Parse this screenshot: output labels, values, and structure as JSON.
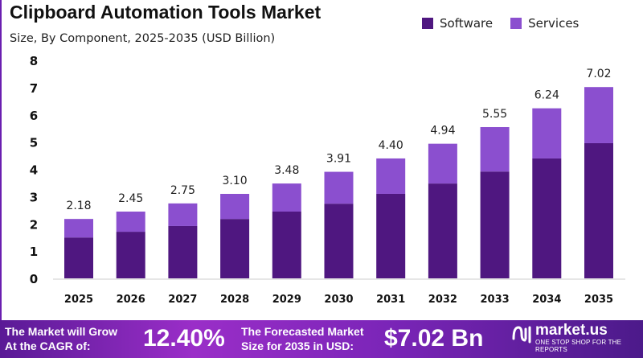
{
  "chart_data": {
    "type": "bar",
    "stacked": true,
    "title": "Clipboard Automation Tools Market",
    "subtitle": "Size, By Component, 2025-2035 (USD Billion)",
    "categories": [
      "2025",
      "2026",
      "2027",
      "2028",
      "2029",
      "2030",
      "2031",
      "2032",
      "2033",
      "2034",
      "2035"
    ],
    "series": [
      {
        "name": "Software",
        "color": "#4f1780",
        "values": [
          1.5,
          1.71,
          1.92,
          2.18,
          2.45,
          2.74,
          3.1,
          3.48,
          3.92,
          4.4,
          4.96
        ]
      },
      {
        "name": "Services",
        "color": "#8b4fcf",
        "values": [
          0.68,
          0.74,
          0.83,
          0.92,
          1.03,
          1.17,
          1.3,
          1.46,
          1.63,
          1.84,
          2.06
        ]
      }
    ],
    "totals": [
      "2.18",
      "2.45",
      "2.75",
      "3.10",
      "3.48",
      "3.91",
      "4.40",
      "4.94",
      "5.55",
      "6.24",
      "7.02"
    ],
    "ylim": [
      0,
      8
    ],
    "yticks": [
      "0",
      "1",
      "2",
      "3",
      "4",
      "5",
      "6",
      "7",
      "8"
    ],
    "grid": false,
    "legend": "top-right",
    "xlabel": "",
    "ylabel": ""
  },
  "banner": {
    "line1a": "The Market will Grow",
    "line1b": "At the CAGR of:",
    "cagr": "12.40%",
    "line2a": "The Forecasted Market",
    "line2b": "Size for 2035 in USD:",
    "forecast": "$7.02 Bn",
    "logo_text": "market.us",
    "logo_tagline": "ONE STOP SHOP FOR THE REPORTS"
  }
}
